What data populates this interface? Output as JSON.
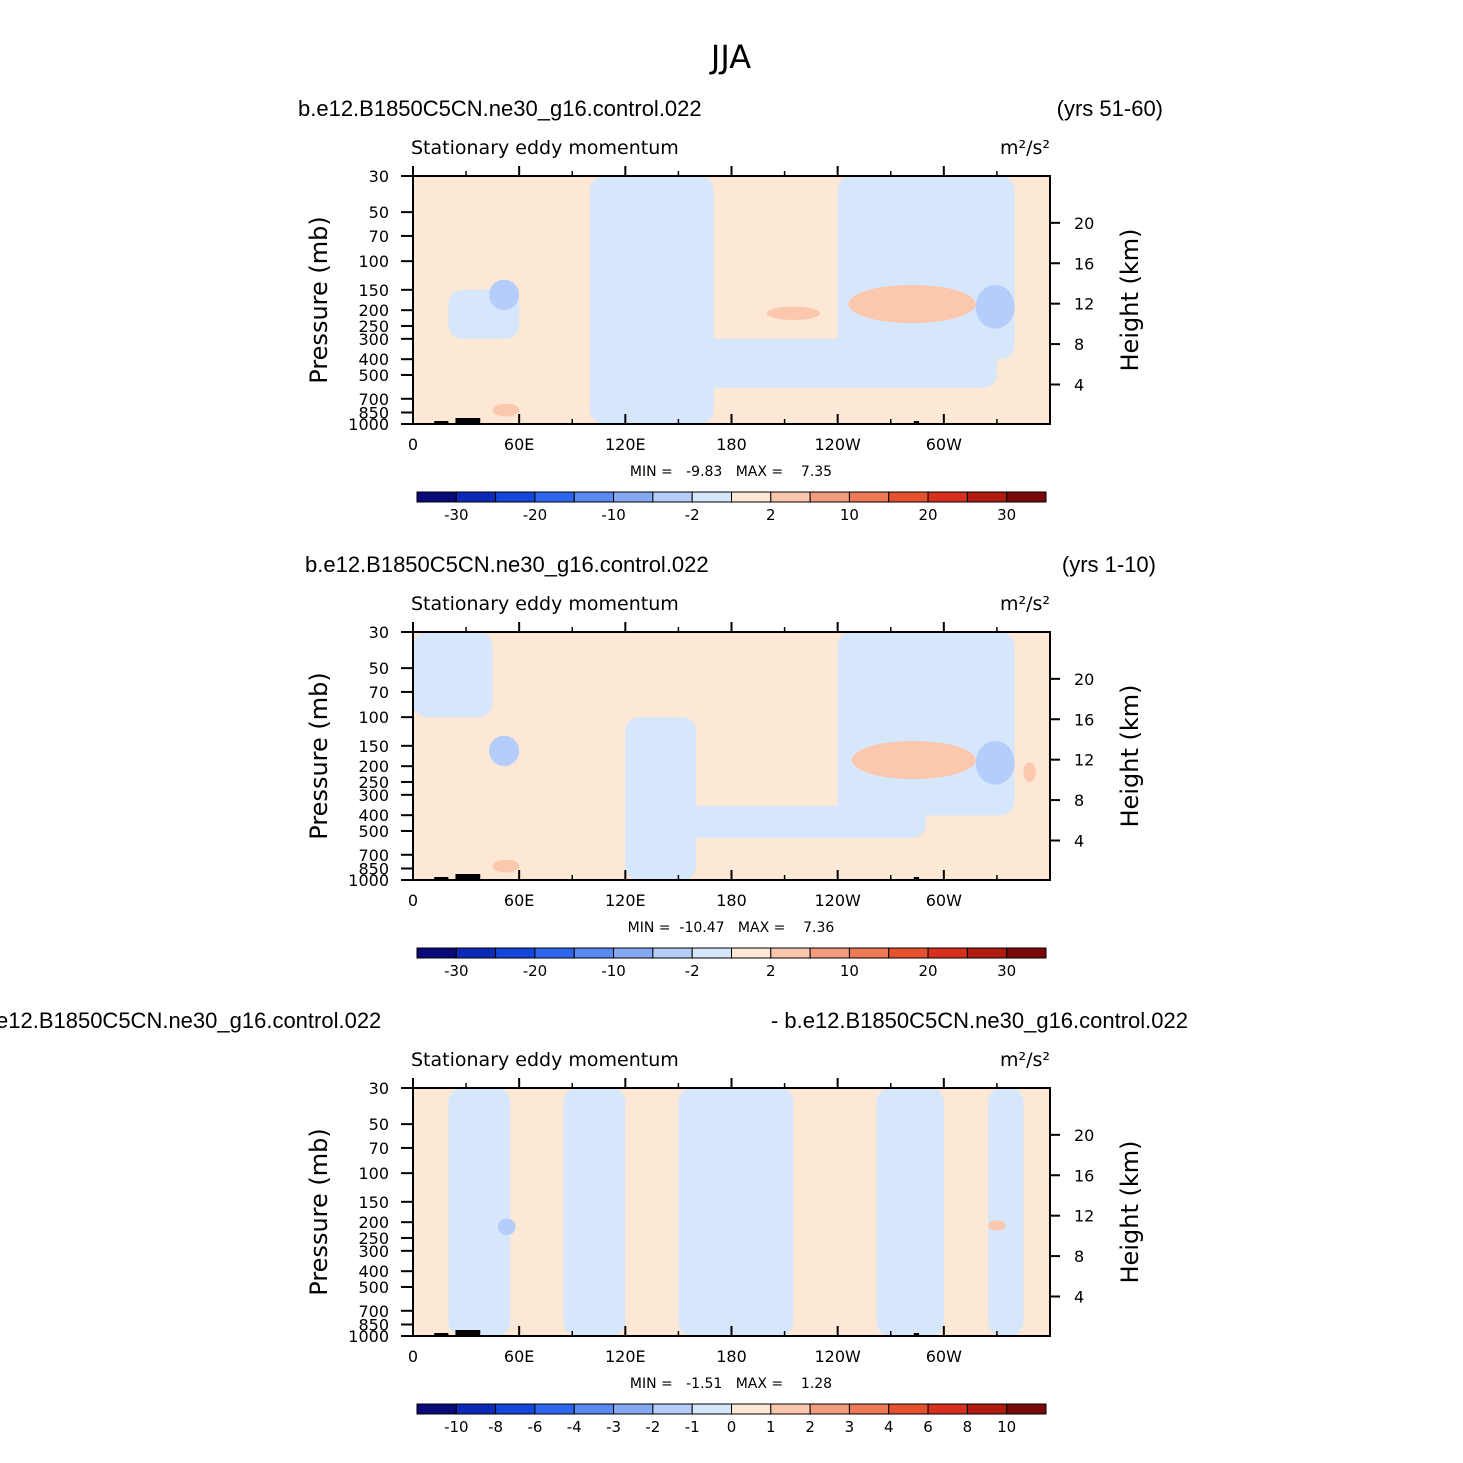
{
  "page_title": "JJA",
  "colors": {
    "neg1": "#d6e6fb",
    "neg2": "#b4cdfa",
    "neg3": "#86a9f4",
    "pos1": "#fde7d5",
    "pos2": "#fbc8ae",
    "pos3": "#f29b7f",
    "land": "#000000"
  },
  "chart_data": [
    {
      "type": "heatmap",
      "left_title": "b.e12.B1850C5CN.ne30_g16.control.022",
      "right_title": "(yrs 51-60)",
      "subtitle": "Stationary eddy momentum",
      "units": "m²/s²",
      "ylabel": "Pressure (mb)",
      "ylabel_right": "Height (km)",
      "x_ticks": [
        "0",
        "60E",
        "120E",
        "180",
        "120W",
        "60W"
      ],
      "y_ticks": [
        "30",
        "50",
        "70",
        "100",
        "150",
        "200",
        "250",
        "300",
        "400",
        "500",
        "700",
        "850",
        "1000"
      ],
      "y_right_ticks": [
        "20",
        "16",
        "12",
        "8",
        "4"
      ],
      "min_max_text": "MIN =   -9.83   MAX =    7.35",
      "min": -9.83,
      "max": 7.35,
      "colorbar_labels": [
        "-30",
        "-20",
        "-10",
        "-2",
        "2",
        "10",
        "20",
        "30"
      ],
      "colorbar_colors": [
        "#0a0a78",
        "#0c2ab8",
        "#1546dc",
        "#2f66ee",
        "#5b89f2",
        "#86a9f4",
        "#b4cdfa",
        "#d6e6fb",
        "#fde7d5",
        "#fbc8ae",
        "#f29b7f",
        "#ee7a55",
        "#e8512e",
        "#d7301f",
        "#b01c10",
        "#7a0a0a"
      ],
      "features": [
        {
          "sign": "neg",
          "level": 1,
          "lon": [
            100,
            170
          ],
          "p": [
            30,
            1000
          ]
        },
        {
          "sign": "neg",
          "level": 1,
          "lon": [
            20,
            60
          ],
          "p": [
            150,
            300
          ]
        },
        {
          "sign": "neg",
          "level": 2,
          "lon": [
            43,
            60
          ],
          "p": [
            130,
            200
          ]
        },
        {
          "sign": "neg",
          "level": 1,
          "lon": [
            240,
            340
          ],
          "p": [
            30,
            400
          ]
        },
        {
          "sign": "neg",
          "level": 2,
          "lon": [
            318,
            340
          ],
          "p": [
            140,
            260
          ]
        },
        {
          "sign": "neg",
          "level": 1,
          "lon": [
            120,
            330
          ],
          "p": [
            300,
            600
          ]
        },
        {
          "sign": "pos",
          "level": 2,
          "lon": [
            246,
            318
          ],
          "p": [
            140,
            240
          ]
        },
        {
          "sign": "pos",
          "level": 2,
          "lon": [
            200,
            230
          ],
          "p": [
            190,
            230
          ]
        },
        {
          "sign": "pos",
          "level": 2,
          "lon": [
            45,
            60
          ],
          "p": [
            750,
            900
          ]
        }
      ]
    },
    {
      "type": "heatmap",
      "left_title": "b.e12.B1850C5CN.ne30_g16.control.022",
      "right_title": "(yrs 1-10)",
      "subtitle": "Stationary eddy momentum",
      "units": "m²/s²",
      "ylabel": "Pressure (mb)",
      "ylabel_right": "Height (km)",
      "x_ticks": [
        "0",
        "60E",
        "120E",
        "180",
        "120W",
        "60W"
      ],
      "y_ticks": [
        "30",
        "50",
        "70",
        "100",
        "150",
        "200",
        "250",
        "300",
        "400",
        "500",
        "700",
        "850",
        "1000"
      ],
      "y_right_ticks": [
        "20",
        "16",
        "12",
        "8",
        "4"
      ],
      "min_max_text": "MIN =  -10.47   MAX =    7.36",
      "min": -10.47,
      "max": 7.36,
      "colorbar_labels": [
        "-30",
        "-20",
        "-10",
        "-2",
        "2",
        "10",
        "20",
        "30"
      ],
      "colorbar_colors": [
        "#0a0a78",
        "#0c2ab8",
        "#1546dc",
        "#2f66ee",
        "#5b89f2",
        "#86a9f4",
        "#b4cdfa",
        "#d6e6fb",
        "#fde7d5",
        "#fbc8ae",
        "#f29b7f",
        "#ee7a55",
        "#e8512e",
        "#d7301f",
        "#b01c10",
        "#7a0a0a"
      ],
      "features": [
        {
          "sign": "neg",
          "level": 1,
          "lon": [
            0,
            45
          ],
          "p": [
            30,
            100
          ]
        },
        {
          "sign": "neg",
          "level": 1,
          "lon": [
            120,
            160
          ],
          "p": [
            100,
            1000
          ]
        },
        {
          "sign": "neg",
          "level": 2,
          "lon": [
            43,
            60
          ],
          "p": [
            130,
            200
          ]
        },
        {
          "sign": "neg",
          "level": 1,
          "lon": [
            240,
            340
          ],
          "p": [
            30,
            400
          ]
        },
        {
          "sign": "neg",
          "level": 2,
          "lon": [
            318,
            340
          ],
          "p": [
            140,
            260
          ]
        },
        {
          "sign": "neg",
          "level": 1,
          "lon": [
            150,
            290
          ],
          "p": [
            350,
            550
          ]
        },
        {
          "sign": "pos",
          "level": 2,
          "lon": [
            248,
            318
          ],
          "p": [
            140,
            240
          ]
        },
        {
          "sign": "pos",
          "level": 2,
          "lon": [
            345,
            352
          ],
          "p": [
            190,
            250
          ]
        },
        {
          "sign": "pos",
          "level": 2,
          "lon": [
            45,
            60
          ],
          "p": [
            750,
            900
          ]
        }
      ]
    },
    {
      "type": "heatmap",
      "left_title": "e12.B1850C5CN.ne30_g16.control.022",
      "right_title": "- b.e12.B1850C5CN.ne30_g16.control.022",
      "subtitle": "Stationary eddy momentum",
      "units": "m²/s²",
      "ylabel": "Pressure (mb)",
      "ylabel_right": "Height (km)",
      "x_ticks": [
        "0",
        "60E",
        "120E",
        "180",
        "120W",
        "60W"
      ],
      "y_ticks": [
        "30",
        "50",
        "70",
        "100",
        "150",
        "200",
        "250",
        "300",
        "400",
        "500",
        "700",
        "850",
        "1000"
      ],
      "y_right_ticks": [
        "20",
        "16",
        "12",
        "8",
        "4"
      ],
      "min_max_text": "MIN =   -1.51   MAX =    1.28",
      "min": -1.51,
      "max": 1.28,
      "colorbar_labels": [
        "-10",
        "-8",
        "-6",
        "-4",
        "-3",
        "-2",
        "-1",
        "0",
        "1",
        "2",
        "3",
        "4",
        "6",
        "8",
        "10"
      ],
      "colorbar_colors": [
        "#0a0a78",
        "#0c2ab8",
        "#1546dc",
        "#2f66ee",
        "#5b89f2",
        "#86a9f4",
        "#b4cdfa",
        "#d6e6fb",
        "#fde7d5",
        "#fbc8ae",
        "#f29b7f",
        "#ee7a55",
        "#e8512e",
        "#d7301f",
        "#b01c10",
        "#7a0a0a"
      ],
      "features": [
        {
          "sign": "neg",
          "level": 1,
          "lon": [
            20,
            55
          ],
          "p": [
            30,
            1000
          ]
        },
        {
          "sign": "neg",
          "level": 1,
          "lon": [
            85,
            120
          ],
          "p": [
            30,
            1000
          ]
        },
        {
          "sign": "neg",
          "level": 1,
          "lon": [
            150,
            215
          ],
          "p": [
            30,
            1000
          ]
        },
        {
          "sign": "neg",
          "level": 1,
          "lon": [
            262,
            300
          ],
          "p": [
            30,
            1000
          ]
        },
        {
          "sign": "neg",
          "level": 1,
          "lon": [
            325,
            345
          ],
          "p": [
            30,
            1000
          ]
        },
        {
          "sign": "neg",
          "level": 2,
          "lon": [
            48,
            58
          ],
          "p": [
            190,
            240
          ]
        },
        {
          "sign": "pos",
          "level": 2,
          "lon": [
            325,
            335
          ],
          "p": [
            195,
            225
          ]
        }
      ]
    }
  ]
}
